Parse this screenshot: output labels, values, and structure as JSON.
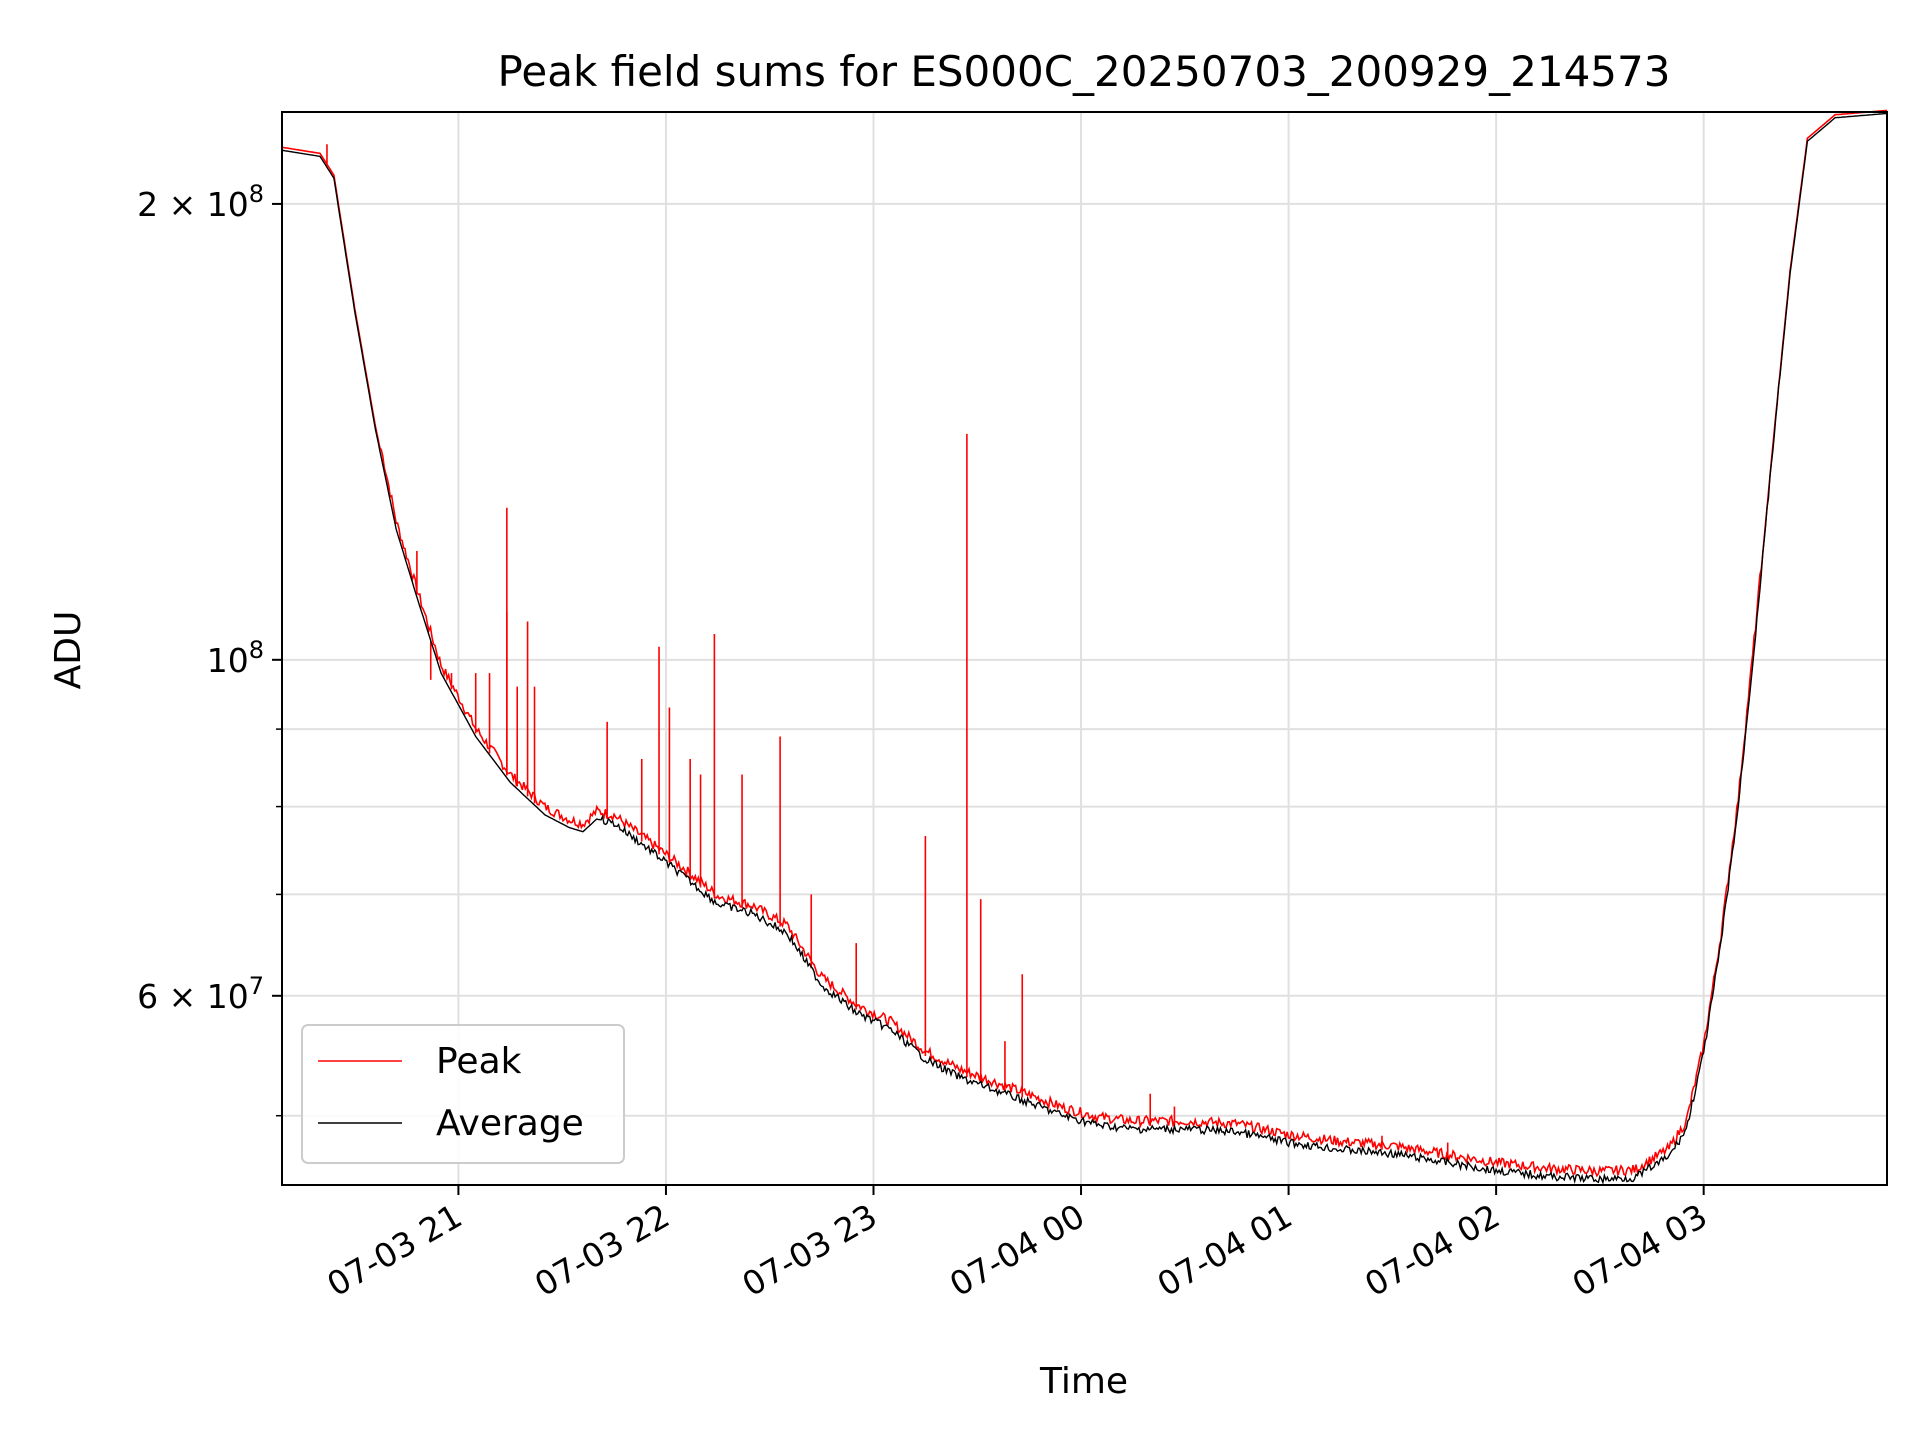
{
  "chart_data": {
    "type": "line",
    "title": "Peak field sums for ES000C_20250703_200929_214573",
    "xlabel": "Time",
    "ylabel": "ADU",
    "yscale": "log",
    "xlim": [
      "2025-07-03 20:09",
      "2025-07-04 03:53"
    ],
    "ylim": [
      45000000,
      230000000
    ],
    "grid": true,
    "legend_position": "lower-left",
    "x_ticks": [
      {
        "t": "2025-07-03 21:00",
        "label": "07-03 21"
      },
      {
        "t": "2025-07-03 22:00",
        "label": "07-03 22"
      },
      {
        "t": "2025-07-03 23:00",
        "label": "07-03 23"
      },
      {
        "t": "2025-07-04 00:00",
        "label": "07-04 00"
      },
      {
        "t": "2025-07-04 01:00",
        "label": "07-04 01"
      },
      {
        "t": "2025-07-04 02:00",
        "label": "07-04 02"
      },
      {
        "t": "2025-07-04 03:00",
        "label": "07-04 03"
      }
    ],
    "y_ticks": [
      {
        "value": 200000000,
        "mantissa": "2",
        "exponent": "8"
      },
      {
        "value": 100000000,
        "mantissa": "",
        "exponent": "8"
      },
      {
        "value": 60000000,
        "mantissa": "6",
        "exponent": "7"
      }
    ],
    "y_minor_ticks": [
      50000000,
      70000000,
      80000000,
      90000000
    ],
    "series": [
      {
        "name": "Average",
        "color": "#000000",
        "points": [
          [
            "2025-07-03 20:09",
            217000000
          ],
          [
            "2025-07-03 20:20",
            215000000
          ],
          [
            "2025-07-03 20:24",
            208000000
          ],
          [
            "2025-07-03 20:30",
            170000000
          ],
          [
            "2025-07-03 20:36",
            142000000
          ],
          [
            "2025-07-03 20:42",
            122000000
          ],
          [
            "2025-07-03 20:48",
            110000000
          ],
          [
            "2025-07-03 20:55",
            98000000
          ],
          [
            "2025-07-03 21:05",
            89000000
          ],
          [
            "2025-07-03 21:15",
            83000000
          ],
          [
            "2025-07-03 21:25",
            79000000
          ],
          [
            "2025-07-03 21:32",
            77500000
          ],
          [
            "2025-07-03 21:36",
            77000000
          ],
          [
            "2025-07-03 21:40",
            78500000
          ],
          [
            "2025-07-03 21:45",
            78000000
          ],
          [
            "2025-07-03 21:55",
            75000000
          ],
          [
            "2025-07-03 22:05",
            72000000
          ],
          [
            "2025-07-03 22:15",
            69000000
          ],
          [
            "2025-07-03 22:25",
            68000000
          ],
          [
            "2025-07-03 22:35",
            66000000
          ],
          [
            "2025-07-03 22:45",
            61000000
          ],
          [
            "2025-07-03 22:55",
            58500000
          ],
          [
            "2025-07-03 23:05",
            57000000
          ],
          [
            "2025-07-03 23:15",
            54500000
          ],
          [
            "2025-07-03 23:25",
            53000000
          ],
          [
            "2025-07-03 23:35",
            52000000
          ],
          [
            "2025-07-03 23:45",
            51000000
          ],
          [
            "2025-07-03 23:55",
            50000000
          ],
          [
            "2025-07-04 00:05",
            49300000
          ],
          [
            "2025-07-04 00:15",
            49000000
          ],
          [
            "2025-07-04 00:30",
            49000000
          ],
          [
            "2025-07-04 00:45",
            48800000
          ],
          [
            "2025-07-04 01:00",
            48000000
          ],
          [
            "2025-07-04 01:15",
            47500000
          ],
          [
            "2025-07-04 01:30",
            47200000
          ],
          [
            "2025-07-04 01:45",
            46600000
          ],
          [
            "2025-07-04 02:00",
            46000000
          ],
          [
            "2025-07-04 02:15",
            45600000
          ],
          [
            "2025-07-04 02:30",
            45400000
          ],
          [
            "2025-07-04 02:40",
            45500000
          ],
          [
            "2025-07-04 02:50",
            47000000
          ],
          [
            "2025-07-04 02:55",
            49000000
          ],
          [
            "2025-07-04 03:00",
            55000000
          ],
          [
            "2025-07-04 03:05",
            65000000
          ],
          [
            "2025-07-04 03:10",
            80000000
          ],
          [
            "2025-07-04 03:15",
            104000000
          ],
          [
            "2025-07-04 03:20",
            138000000
          ],
          [
            "2025-07-04 03:25",
            180000000
          ],
          [
            "2025-07-04 03:30",
            220000000
          ],
          [
            "2025-07-04 03:38",
            228000000
          ],
          [
            "2025-07-04 03:53",
            229500000
          ]
        ]
      },
      {
        "name": "Peak",
        "color": "#ff0000",
        "spikes": [
          [
            "2025-07-03 20:22",
            219000000
          ],
          [
            "2025-07-03 20:48",
            118000000
          ],
          [
            "2025-07-03 20:52",
            97000000
          ],
          [
            "2025-07-03 20:58",
            98000000
          ],
          [
            "2025-07-03 21:05",
            98000000
          ],
          [
            "2025-07-03 21:09",
            98000000
          ],
          [
            "2025-07-03 21:14",
            107500000
          ],
          [
            "2025-07-03 21:14",
            126000000
          ],
          [
            "2025-07-03 21:17",
            96000000
          ],
          [
            "2025-07-03 21:20",
            106000000
          ],
          [
            "2025-07-03 21:22",
            96000000
          ],
          [
            "2025-07-03 21:43",
            91000000
          ],
          [
            "2025-07-03 21:53",
            86000000
          ],
          [
            "2025-07-03 21:58",
            102000000
          ],
          [
            "2025-07-03 22:01",
            93000000
          ],
          [
            "2025-07-03 22:07",
            86000000
          ],
          [
            "2025-07-03 22:10",
            84000000
          ],
          [
            "2025-07-03 22:14",
            104000000
          ],
          [
            "2025-07-03 22:22",
            84000000
          ],
          [
            "2025-07-03 22:33",
            89000000
          ],
          [
            "2025-07-03 22:42",
            70000000
          ],
          [
            "2025-07-03 22:55",
            65000000
          ],
          [
            "2025-07-03 23:15",
            76500000
          ],
          [
            "2025-07-03 23:27",
            141000000
          ],
          [
            "2025-07-03 23:31",
            69500000
          ],
          [
            "2025-07-03 23:38",
            56000000
          ],
          [
            "2025-07-03 23:43",
            62000000
          ],
          [
            "2025-07-04 00:20",
            51700000
          ],
          [
            "2025-07-04 00:27",
            50700000
          ],
          [
            "2025-07-04 01:27",
            48500000
          ],
          [
            "2025-07-04 01:46",
            48000000
          ]
        ]
      }
    ]
  }
}
